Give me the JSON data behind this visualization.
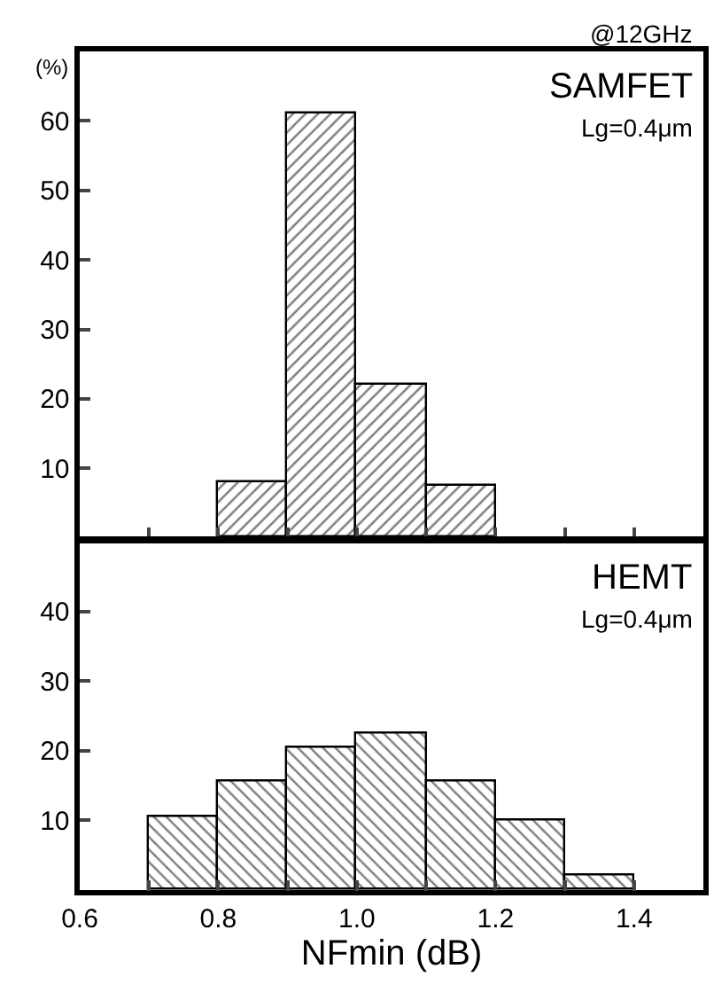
{
  "chart_data": [
    {
      "type": "histogram",
      "title": "SAMFET",
      "ylabel": "(%)",
      "annotations": [
        "@12GHz",
        "Lg=0.4μm"
      ],
      "color": "#000000",
      "bins": [
        0.8,
        0.9,
        1.0,
        1.1,
        1.2
      ],
      "values": [
        8,
        61,
        22,
        7.5
      ],
      "xlim": [
        0.6,
        1.5
      ],
      "xticks": [
        {
          "value": 0.6,
          "label": null
        },
        {
          "value": 0.7,
          "label": null
        },
        {
          "value": 0.8,
          "label": null
        },
        {
          "value": 0.9,
          "label": null
        },
        {
          "value": 1.0,
          "label": null
        },
        {
          "value": 1.1,
          "label": null
        },
        {
          "value": 1.2,
          "label": null
        },
        {
          "value": 1.3,
          "label": null
        },
        {
          "value": 1.4,
          "label": null
        }
      ],
      "ylim": [
        0,
        70
      ],
      "yticks": [
        10,
        20,
        30,
        40,
        50,
        60
      ],
      "tick_labels": "y"
    },
    {
      "type": "histogram",
      "title": "HEMT",
      "xlabel": "NFmin (dB)",
      "annotations": [
        "Lg=0.4μm"
      ],
      "color": "#000000",
      "bins": [
        0.7,
        0.8,
        0.9,
        1.0,
        1.1,
        1.2,
        1.3,
        1.4
      ],
      "values": [
        10.5,
        15.5,
        20.5,
        22.5,
        15.5,
        10,
        2
      ],
      "xlim": [
        0.6,
        1.5
      ],
      "xticks": [
        {
          "value": 0.6,
          "label": "0.6"
        },
        {
          "value": 0.7,
          "label": null
        },
        {
          "value": 0.8,
          "label": "0.8"
        },
        {
          "value": 0.9,
          "label": null
        },
        {
          "value": 1.0,
          "label": "1.0"
        },
        {
          "value": 1.1,
          "label": null
        },
        {
          "value": 1.2,
          "label": "1.2"
        },
        {
          "value": 1.3,
          "label": null
        },
        {
          "value": 1.4,
          "label": "1.4"
        }
      ],
      "ylim": [
        0,
        50
      ],
      "yticks": [
        10,
        20,
        30,
        40
      ]
    }
  ]
}
